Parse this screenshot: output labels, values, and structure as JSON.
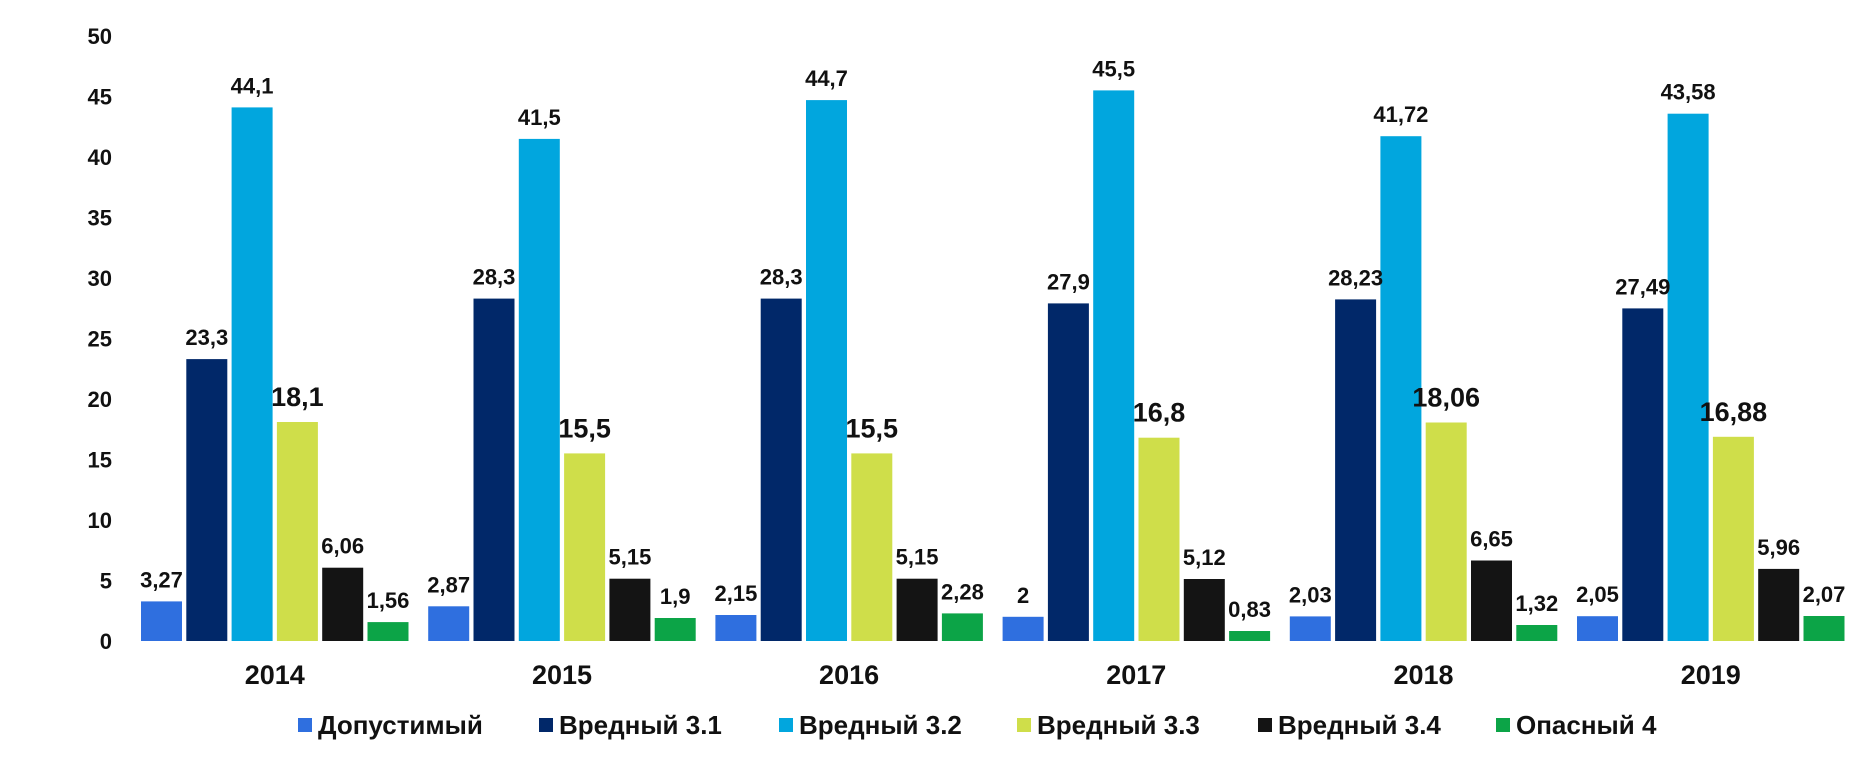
{
  "chart_data": {
    "type": "bar",
    "title": "",
    "xlabel": "",
    "ylabel": "",
    "ylim": [
      0,
      50
    ],
    "yticks": [
      0,
      5,
      10,
      15,
      20,
      25,
      30,
      35,
      40,
      45,
      50
    ],
    "grid": false,
    "legend_position": "bottom",
    "categories": [
      "2014",
      "2015",
      "2016",
      "2017",
      "2018",
      "2019"
    ],
    "series": [
      {
        "name": "Допустимый",
        "color": "#2f6fdf",
        "values": [
          3.27,
          2.87,
          2.15,
          2.0,
          2.03,
          2.05
        ],
        "labels": [
          "3,27",
          "2,87",
          "2,15",
          "2",
          "2,03",
          "2,05"
        ]
      },
      {
        "name": "Вредный 3.1",
        "color": "#012869",
        "values": [
          23.3,
          28.3,
          28.3,
          27.9,
          28.23,
          27.49
        ],
        "labels": [
          "23,3",
          "28,3",
          "28,3",
          "27,9",
          "28,23",
          "27,49"
        ]
      },
      {
        "name": "Вредный 3.2",
        "color": "#01a6de",
        "values": [
          44.1,
          41.5,
          44.7,
          45.5,
          41.72,
          43.58
        ],
        "labels": [
          "44,1",
          "41,5",
          "44,7",
          "45,5",
          "41,72",
          "43,58"
        ]
      },
      {
        "name": "Вредный 3.3",
        "color": "#cfde4a",
        "values": [
          18.1,
          15.5,
          15.5,
          16.8,
          18.06,
          16.88
        ],
        "labels": [
          "18,1",
          "15,5",
          "15,5",
          "16,8",
          "18,06",
          "16,88"
        ]
      },
      {
        "name": "Вредный 3.4",
        "color": "#141414",
        "values": [
          6.06,
          5.15,
          5.15,
          5.12,
          6.65,
          5.96
        ],
        "labels": [
          "6,06",
          "5,15",
          "5,15",
          "5,12",
          "6,65",
          "5,96"
        ]
      },
      {
        "name": "Опасный 4",
        "color": "#0ca447",
        "values": [
          1.56,
          1.9,
          2.28,
          0.83,
          1.32,
          2.07
        ],
        "labels": [
          "1,56",
          "1,9",
          "2,28",
          "0,83",
          "1,32",
          "2,07"
        ]
      }
    ]
  }
}
